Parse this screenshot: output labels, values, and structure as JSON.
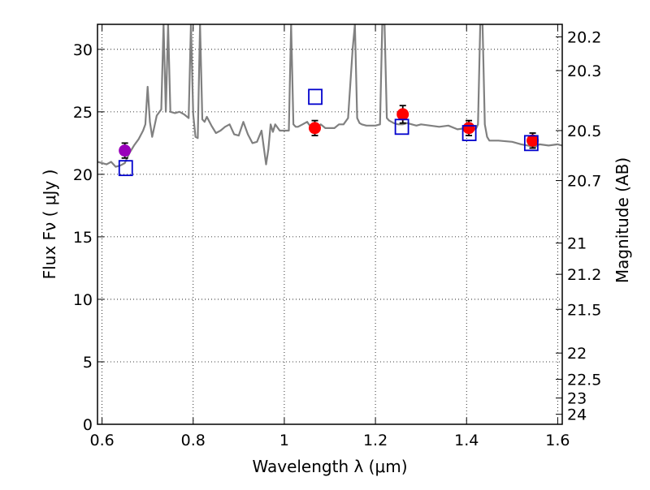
{
  "chart_data": {
    "type": "line",
    "title": "",
    "xlabel": "Wavelength  λ (μm)",
    "ylabel": "Flux  Fν  ( μJy )",
    "y2label": "Magnitude (AB)",
    "xlim": [
      0.59,
      1.61
    ],
    "ylim": [
      0,
      32
    ],
    "grid": true,
    "x_ticks": [
      0.6,
      0.8,
      1.0,
      1.2,
      1.4,
      1.6
    ],
    "x_tick_labels": [
      "0.6",
      "0.8",
      "1",
      "1.2",
      "1.4",
      "1.6"
    ],
    "y_ticks": [
      0,
      5,
      10,
      15,
      20,
      25,
      30
    ],
    "y_tick_labels": [
      "0",
      "5",
      "10",
      "15",
      "20",
      "25",
      "30"
    ],
    "y2_ticks": [
      {
        "label": "20.2",
        "flux": 31.0
      },
      {
        "label": "20.3",
        "flux": 28.3
      },
      {
        "label": "20.5",
        "flux": 23.5
      },
      {
        "label": "20.7",
        "flux": 19.5
      },
      {
        "label": "21",
        "flux": 14.5
      },
      {
        "label": "21.2",
        "flux": 12.0
      },
      {
        "label": "21.5",
        "flux": 9.2
      },
      {
        "label": "22",
        "flux": 5.7
      },
      {
        "label": "22.5",
        "flux": 3.6
      },
      {
        "label": "23",
        "flux": 2.1
      },
      {
        "label": "24",
        "flux": 0.8
      }
    ],
    "series": [
      {
        "kind": "line",
        "color": "#808080",
        "x": [
          0.59,
          0.6,
          0.61,
          0.62,
          0.63,
          0.64,
          0.65,
          0.66,
          0.67,
          0.68,
          0.69,
          0.695,
          0.7,
          0.705,
          0.71,
          0.72,
          0.73,
          0.735,
          0.74,
          0.745,
          0.75,
          0.76,
          0.77,
          0.78,
          0.79,
          0.795,
          0.8,
          0.805,
          0.81,
          0.815,
          0.82,
          0.825,
          0.83,
          0.84,
          0.85,
          0.86,
          0.87,
          0.88,
          0.89,
          0.9,
          0.91,
          0.92,
          0.93,
          0.94,
          0.95,
          0.96,
          0.965,
          0.97,
          0.975,
          0.98,
          0.99,
          1.0,
          1.01,
          1.015,
          1.02,
          1.025,
          1.03,
          1.04,
          1.05,
          1.06,
          1.07,
          1.08,
          1.09,
          1.1,
          1.11,
          1.12,
          1.13,
          1.14,
          1.15,
          1.155,
          1.16,
          1.165,
          1.17,
          1.18,
          1.19,
          1.2,
          1.21,
          1.215,
          1.22,
          1.225,
          1.23,
          1.24,
          1.25,
          1.26,
          1.27,
          1.28,
          1.29,
          1.3,
          1.32,
          1.34,
          1.36,
          1.38,
          1.4,
          1.42,
          1.425,
          1.43,
          1.435,
          1.44,
          1.445,
          1.45,
          1.47,
          1.5,
          1.52,
          1.55,
          1.56,
          1.58,
          1.6,
          1.61
        ],
        "y": [
          21.0,
          20.9,
          20.8,
          21.0,
          20.6,
          20.7,
          20.9,
          21.7,
          22.3,
          22.8,
          23.5,
          24.0,
          27.0,
          24.2,
          23.0,
          24.7,
          25.2,
          32.0,
          25.0,
          32.0,
          25.0,
          24.9,
          25.0,
          24.8,
          24.5,
          32.0,
          24.8,
          23.0,
          22.9,
          32.0,
          24.4,
          24.2,
          24.6,
          23.9,
          23.3,
          23.5,
          23.8,
          24.0,
          23.2,
          23.1,
          24.2,
          23.2,
          22.5,
          22.6,
          23.5,
          20.8,
          22.0,
          24.0,
          23.4,
          24.0,
          23.5,
          23.5,
          23.5,
          32.0,
          24.0,
          23.8,
          23.8,
          24.0,
          24.2,
          23.7,
          23.6,
          24.0,
          23.7,
          23.7,
          23.7,
          24.0,
          24.0,
          24.5,
          30.0,
          32.0,
          24.5,
          24.1,
          24.0,
          23.9,
          23.9,
          23.9,
          24.0,
          32.0,
          32.0,
          24.5,
          24.3,
          24.1,
          24.0,
          24.0,
          24.1,
          24.0,
          23.9,
          24.0,
          23.9,
          23.8,
          23.9,
          23.6,
          23.7,
          23.6,
          24.0,
          32.0,
          32.0,
          24.0,
          23.0,
          22.7,
          22.7,
          22.6,
          22.4,
          22.2,
          22.4,
          22.3,
          22.4,
          22.3
        ]
      },
      {
        "kind": "points",
        "marker": "circle",
        "x": [
          0.65,
          1.067,
          1.26,
          1.405,
          1.545
        ],
        "y": [
          21.9,
          23.7,
          24.8,
          23.7,
          22.7
        ],
        "yerr": [
          0.6,
          0.6,
          0.7,
          0.6,
          0.6
        ],
        "colors": [
          "#9900bb",
          "#ff0000",
          "#ff0000",
          "#ff0000",
          "#ff0000"
        ]
      },
      {
        "kind": "points",
        "marker": "open-square",
        "color": "#0000cc",
        "x": [
          0.652,
          1.068,
          1.258,
          1.406,
          1.542
        ],
        "y": [
          20.5,
          26.2,
          23.8,
          23.3,
          22.5
        ]
      }
    ]
  }
}
